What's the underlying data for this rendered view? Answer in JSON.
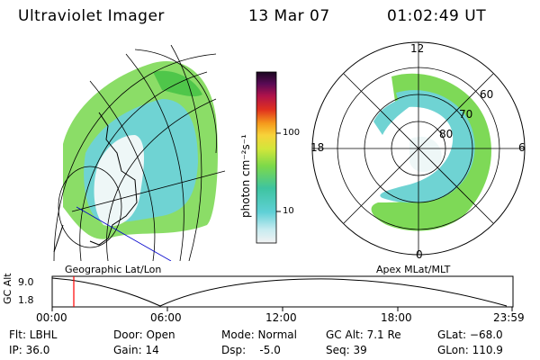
{
  "header": {
    "instrument": "Ultraviolet Imager",
    "date": "13 Mar 07",
    "time": "01:02:49 UT"
  },
  "colorbar": {
    "label": "photon cm⁻²s⁻¹",
    "ticks": [
      "100",
      "10"
    ]
  },
  "left_panel": {
    "caption": "Geographic Lat/Lon"
  },
  "right_panel": {
    "caption": "Apex MLat/MLT",
    "mlt_labels": {
      "top": "12",
      "left": "18",
      "right": "6",
      "bottom": "0"
    },
    "mlat_labels": [
      "60",
      "70",
      "80"
    ]
  },
  "altitude_plot": {
    "ylabel": "GC Alt",
    "yticks": [
      "9.0",
      "1.8"
    ],
    "xticks": [
      "00:00",
      "06:00",
      "12:00",
      "18:00",
      "23:59"
    ],
    "marker_time": "01:02:49",
    "marker_color": "#ff0000"
  },
  "info": {
    "flt": "Flt: LBHL",
    "ip": "IP: 36.0",
    "door": "Door: Open",
    "gain": "Gain: 14",
    "mode": "Mode: Normal",
    "dsp": "Dsp:    -5.0",
    "gcalt": "GC Alt: 7.1 Re",
    "seq": "Seq: 39",
    "glat": "GLat: −68.0",
    "glon": "GLon: 110.9"
  }
}
